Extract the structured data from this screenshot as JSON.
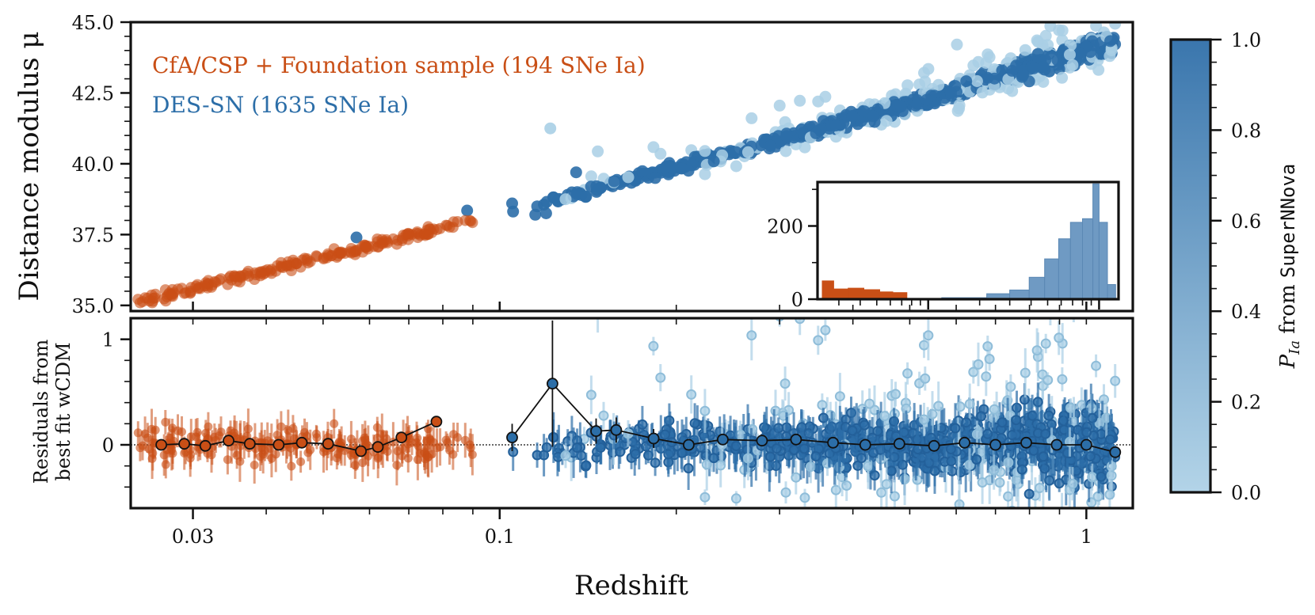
{
  "colors": {
    "orange": "#c94f16",
    "blue": "#2c6ea8",
    "lightblue": "#a9cfe5",
    "hist_blue": "#6f9ac3",
    "cbar_top": "#3a76ad",
    "cbar_bottom": "#b3d4e8"
  },
  "chart_data": [
    {
      "id": "hubble",
      "type": "scatter",
      "ylabel": "Distance modulus μ",
      "xscale": "log",
      "xlim": [
        0.0235,
        1.2
      ],
      "ylim": [
        34.8,
        45.0
      ],
      "yticks": [
        "35.0",
        "37.5",
        "40.0",
        "42.5",
        "45.0"
      ],
      "legend": [
        {
          "label": "CfA/CSP + Foundation sample (194 SNe Ia)",
          "color": "orange"
        },
        {
          "label": "DES-SN (1635 SNe Ia)",
          "color": "blue"
        }
      ],
      "series": [
        {
          "name": "CfA/CSP + Foundation",
          "n_points": 194,
          "z_range": [
            0.024,
            0.09
          ],
          "mu_range": [
            35.0,
            38.4
          ]
        },
        {
          "name": "DES-SN",
          "n_points": 1635,
          "z_range": [
            0.1,
            1.12
          ],
          "mu_range": [
            38.2,
            44.7
          ]
        }
      ]
    },
    {
      "id": "residuals",
      "type": "scatter",
      "ylabel": [
        "Residuals from",
        "best fit wCDM"
      ],
      "xlabel": "Redshift",
      "xscale": "log",
      "xlim": [
        0.0235,
        1.2
      ],
      "ylim": [
        -0.6,
        1.2
      ],
      "yticks": [
        "0",
        "1"
      ],
      "xticks": [
        "0.03",
        "0.1",
        "1"
      ],
      "binned_orange": {
        "z": [
          0.0265,
          0.029,
          0.0315,
          0.0345,
          0.0375,
          0.042,
          0.046,
          0.051,
          0.058,
          0.062,
          0.068,
          0.078
        ],
        "res": [
          0.0,
          0.01,
          -0.01,
          0.04,
          0.01,
          0.0,
          0.02,
          0.01,
          -0.06,
          -0.02,
          0.07,
          0.22
        ]
      },
      "binned_blue": {
        "z": [
          0.105,
          0.123,
          0.146,
          0.158,
          0.183,
          0.21,
          0.24,
          0.28,
          0.32,
          0.37,
          0.42,
          0.48,
          0.55,
          0.62,
          0.7,
          0.79,
          0.89,
          1.0,
          1.12
        ],
        "res": [
          0.07,
          0.58,
          0.13,
          0.14,
          0.06,
          0.0,
          0.05,
          0.04,
          0.05,
          0.02,
          0.0,
          0.01,
          -0.01,
          0.02,
          0.0,
          0.02,
          0.0,
          0.0,
          -0.07
        ],
        "err": [
          0.13,
          0.6,
          0.12,
          0.12,
          0.09,
          0.03,
          0.03,
          0.02,
          0.02,
          0.02,
          0.02,
          0.02,
          0.02,
          0.02,
          0.02,
          0.02,
          0.02,
          0.03,
          0.05
        ]
      }
    },
    {
      "id": "inset-histogram",
      "type": "bar",
      "yticks": [
        "0",
        "200"
      ],
      "ylim": [
        0,
        320
      ],
      "series": [
        {
          "name": "CfA/CSP + Foundation",
          "color": "orange",
          "edges": [
            0.024,
            0.028,
            0.034,
            0.042,
            0.052,
            0.062,
            0.075
          ],
          "counts": [
            50,
            28,
            30,
            26,
            20,
            18
          ]
        },
        {
          "name": "DES-SN",
          "color": "hist_blue",
          "edges": [
            0.12,
            0.22,
            0.3,
            0.39,
            0.48,
            0.58,
            0.68,
            0.8,
            0.92,
            1.0,
            1.12,
            1.25
          ],
          "counts": [
            4,
            15,
            25,
            60,
            110,
            165,
            210,
            220,
            315,
            210,
            40
          ]
        }
      ]
    },
    {
      "id": "colorbar",
      "type": "heatmap",
      "label_prefix": "P",
      "label_sub": "Ia",
      "label_mid": " from ",
      "label_code": "SuperNNova",
      "range": [
        0.0,
        1.0
      ],
      "ticks": [
        "0.0",
        "0.2",
        "0.4",
        "0.6",
        "0.8",
        "1.0"
      ]
    }
  ]
}
